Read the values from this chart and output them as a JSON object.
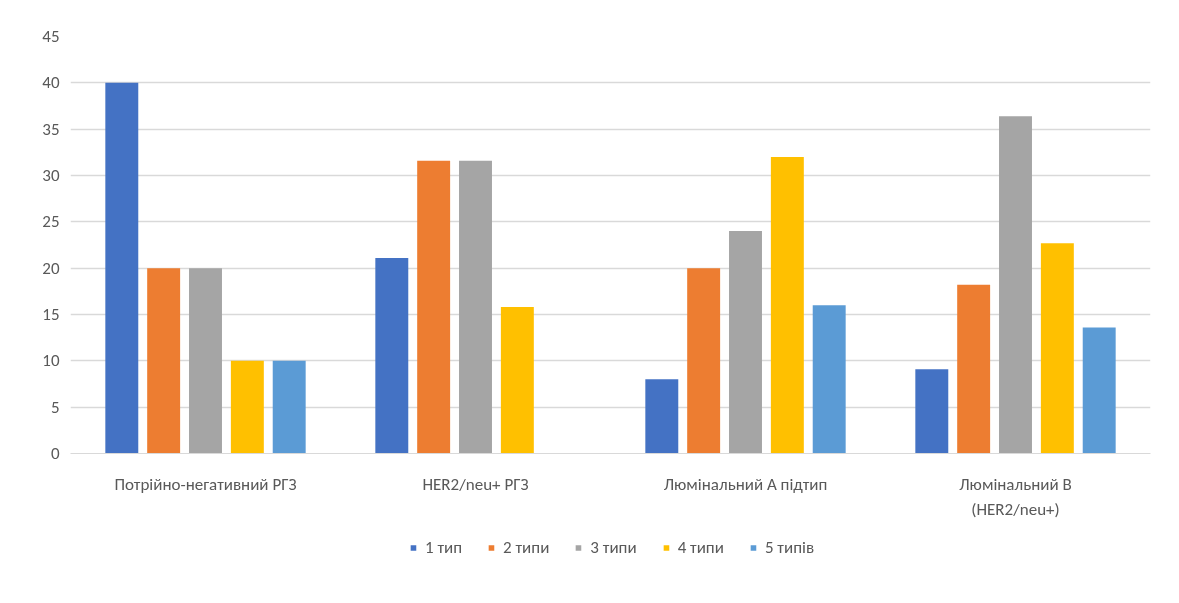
{
  "chart_data": {
    "type": "bar",
    "categories": [
      "Потрійно-негативний РГЗ",
      "HER2/neu+ РГЗ",
      "Люмінальний А підтип",
      "Люмінальний В (HER2/neu+)"
    ],
    "series": [
      {
        "name": "1 тип",
        "color": "#4472c4",
        "values": [
          40,
          21.1,
          8,
          9.1
        ]
      },
      {
        "name": "2 типи",
        "color": "#ed7d31",
        "values": [
          20,
          31.6,
          20,
          18.2
        ]
      },
      {
        "name": "3 типи",
        "color": "#a5a5a5",
        "values": [
          20,
          31.6,
          24,
          36.4
        ]
      },
      {
        "name": "4 типи",
        "color": "#ffc000",
        "values": [
          10,
          15.8,
          32,
          22.7
        ]
      },
      {
        "name": "5 типів",
        "color": "#5b9bd5",
        "values": [
          10,
          null,
          16,
          13.6
        ]
      }
    ],
    "ylim": [
      0,
      45
    ],
    "yticks": [
      0,
      5,
      10,
      15,
      20,
      25,
      30,
      35,
      40,
      45
    ],
    "grid": "y",
    "legend": "bottom"
  }
}
